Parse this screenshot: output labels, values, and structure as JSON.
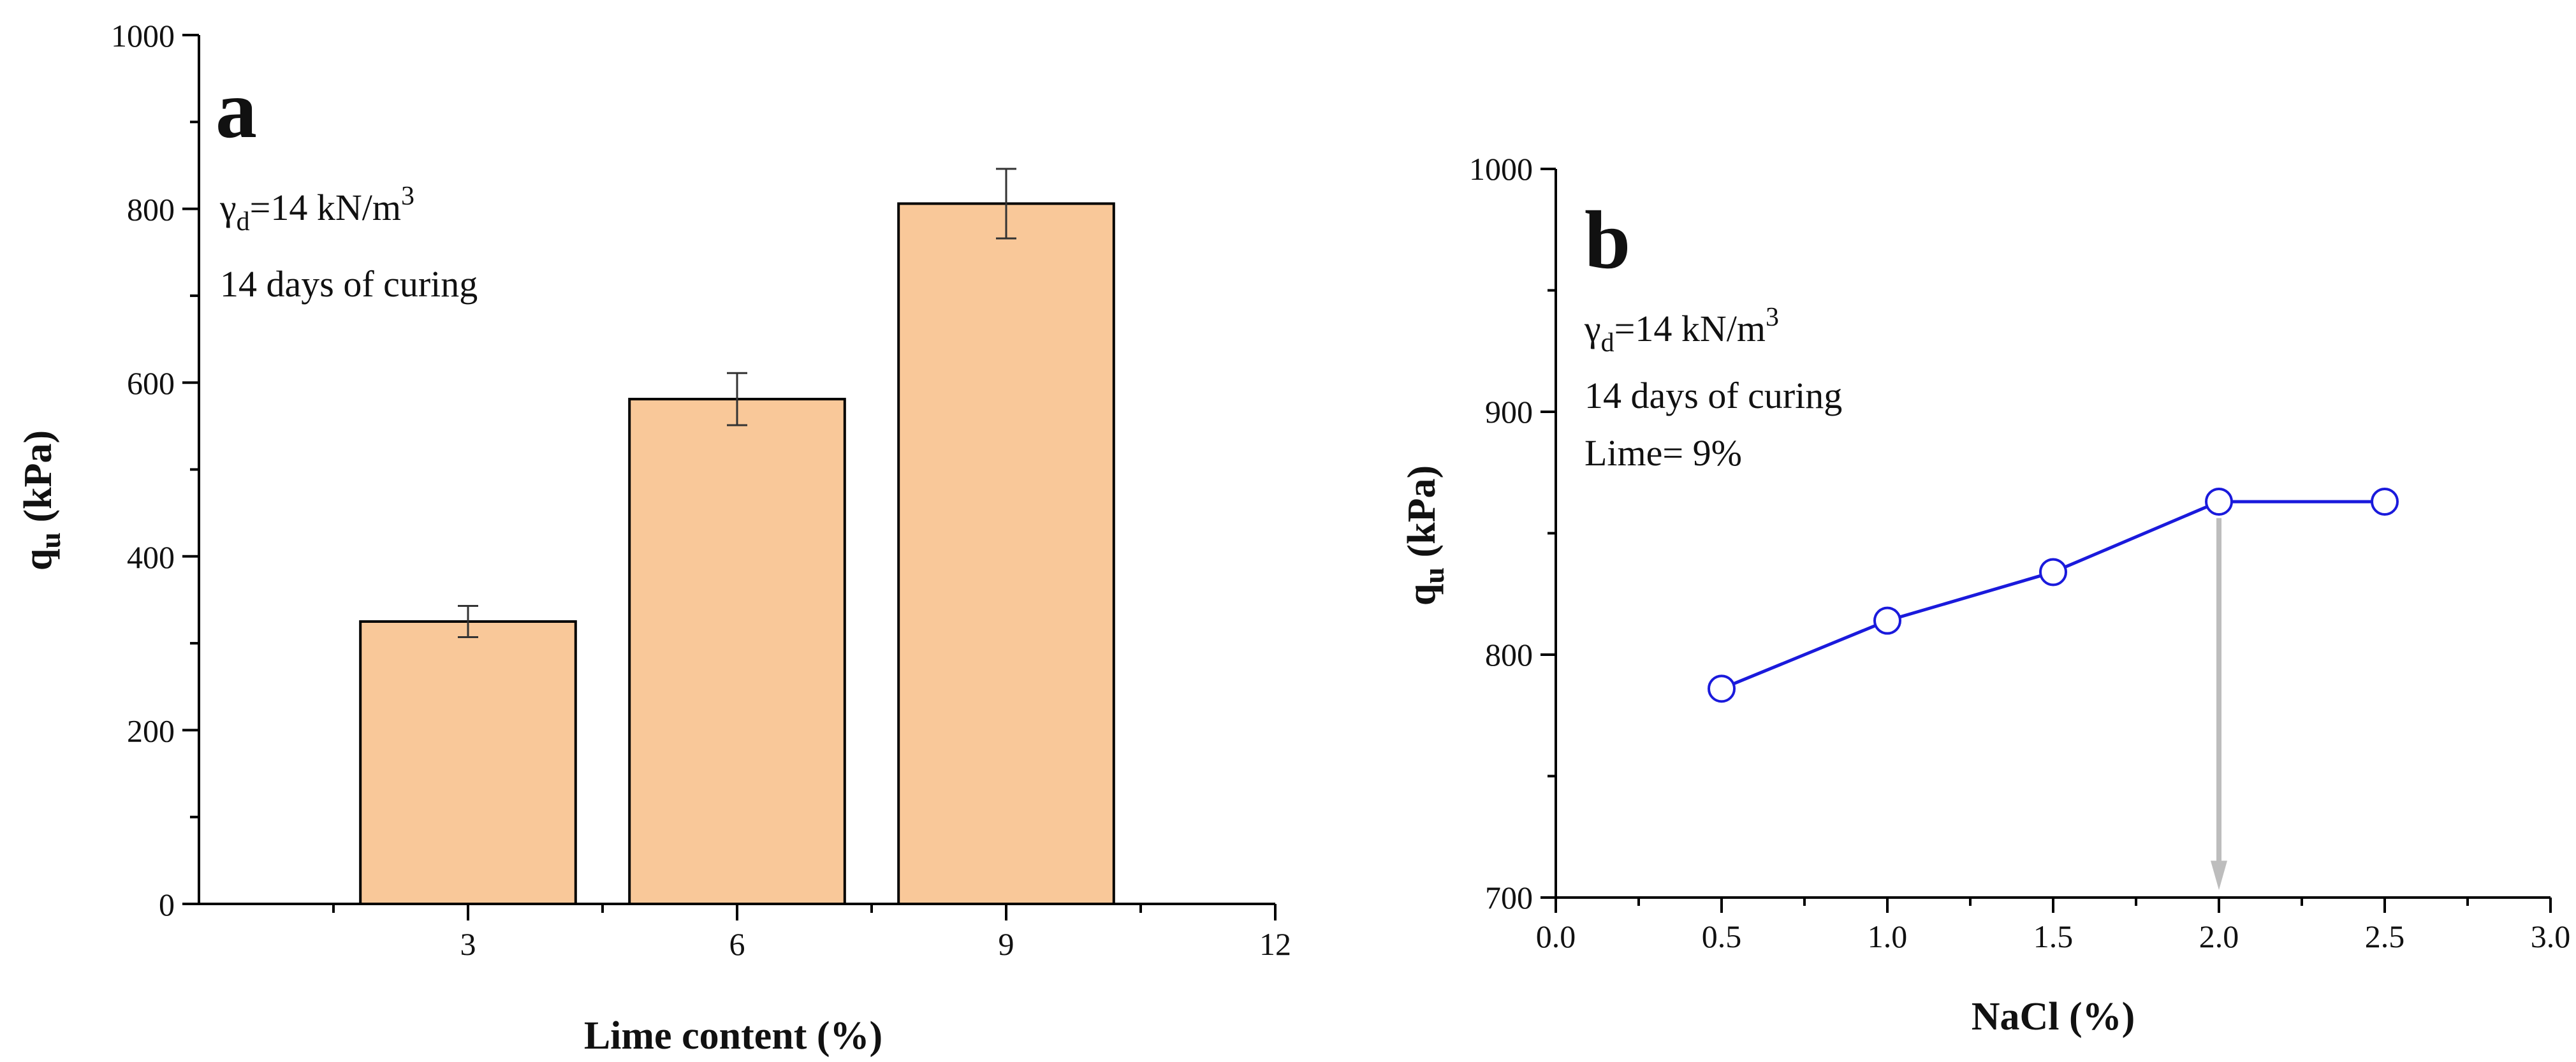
{
  "chart_data": [
    {
      "type": "bar",
      "panel": "a",
      "categories": [
        "3",
        "6",
        "9"
      ],
      "x_values": [
        3,
        6,
        9
      ],
      "values": [
        325,
        581,
        806
      ],
      "error": [
        18,
        30,
        40
      ],
      "xlabel": "Lime content (%)",
      "ylabel_main": "q",
      "ylabel_sub": "u",
      "ylabel_unit": " (kPa)",
      "xlim": [
        0,
        12
      ],
      "ylim": [
        0,
        1000
      ],
      "xticks": [
        3,
        6,
        9,
        12
      ],
      "xtick_labels": [
        "3",
        "6",
        "9",
        "12"
      ],
      "yticks": [
        0,
        200,
        400,
        600,
        800,
        1000
      ],
      "ytick_labels": [
        "0",
        "200",
        "400",
        "600",
        "800",
        "1000"
      ],
      "annotations": {
        "density_symbol": "γ",
        "density_sub": "d",
        "density_value": "=14 kN/m",
        "density_exp": "3",
        "curing": "14 days of curing"
      },
      "bar_color": "#f9c899",
      "grid": false
    },
    {
      "type": "line",
      "panel": "b",
      "x": [
        0.5,
        1.0,
        1.5,
        2.0,
        2.5
      ],
      "y": [
        786,
        814,
        834,
        863,
        863
      ],
      "xlabel": "NaCl (%)",
      "ylabel_main": "q",
      "ylabel_sub": "u",
      "ylabel_unit": " (kPa)",
      "xlim": [
        0,
        3
      ],
      "ylim": [
        700,
        1000
      ],
      "xticks": [
        0,
        0.5,
        1.0,
        1.5,
        2.0,
        2.5,
        3.0
      ],
      "xtick_labels": [
        "0.0",
        "0.5",
        "1.0",
        "1.5",
        "2.0",
        "2.5",
        "3.0"
      ],
      "yticks": [
        700,
        800,
        900,
        1000
      ],
      "ytick_labels": [
        "700",
        "800",
        "900",
        "1000"
      ],
      "annotations": {
        "density_symbol": "γ",
        "density_sub": "d",
        "density_value": "=14 kN/m",
        "density_exp": "3",
        "curing": "14 days of curing",
        "lime": "Lime= 9%"
      },
      "arrow": {
        "x": 2.0,
        "from_y": 862,
        "to_y": 701
      },
      "line_color": "#1a1adc",
      "arrow_color": "#bdbdbd",
      "grid": false
    }
  ]
}
